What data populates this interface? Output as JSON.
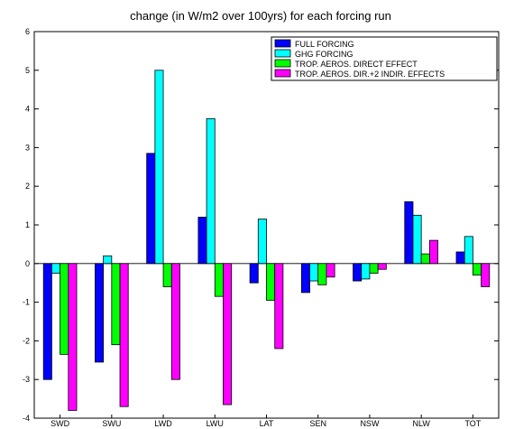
{
  "chart_data": {
    "type": "bar",
    "title": "change (in W/m2 over 100yrs) for each forcing run",
    "xlabel": "",
    "ylabel": "",
    "ylim": [
      -4,
      6
    ],
    "yticks": [
      -4,
      -3,
      -2,
      -1,
      0,
      1,
      2,
      3,
      4,
      5,
      6
    ],
    "grid": false,
    "legend_position": "top-right",
    "categories": [
      "SWD",
      "SWU",
      "LWD",
      "LWU",
      "LAT",
      "SEN",
      "NSW",
      "NLW",
      "TOT"
    ],
    "series": [
      {
        "name": "FULL FORCING",
        "color": "#0000ff",
        "values": [
          -3.0,
          -2.55,
          2.85,
          1.2,
          -0.5,
          -0.75,
          -0.45,
          1.6,
          0.3
        ]
      },
      {
        "name": "GHG FORCING",
        "color": "#00ffff",
        "values": [
          -0.25,
          0.2,
          5.0,
          3.75,
          1.15,
          -0.45,
          -0.4,
          1.25,
          0.7
        ]
      },
      {
        "name": "TROP. AEROS. DIRECT EFFECT",
        "color": "#00ff00",
        "values": [
          -2.35,
          -2.1,
          -0.6,
          -0.85,
          -0.95,
          -0.55,
          -0.25,
          0.25,
          -0.3
        ]
      },
      {
        "name": "TROP. AEROS. DIR.+2 INDIR. EFFECTS",
        "color": "#ff00ff",
        "values": [
          -3.8,
          -3.7,
          -3.0,
          -3.65,
          -2.2,
          -0.35,
          -0.15,
          0.6,
          -0.6
        ]
      }
    ]
  }
}
